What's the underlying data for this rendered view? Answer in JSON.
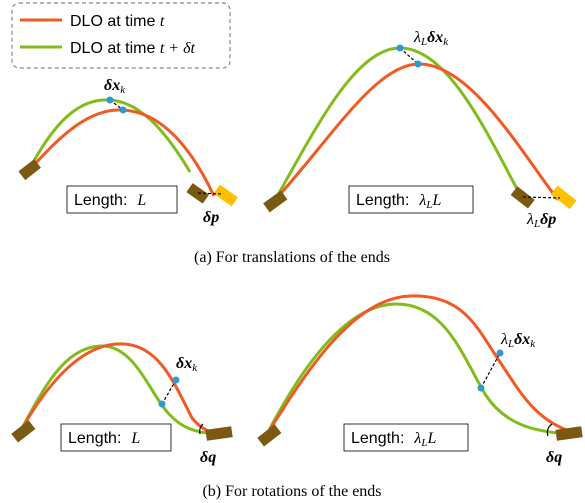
{
  "legend": {
    "items": [
      {
        "prefix": "DLO at time ",
        "math": "t",
        "suffix": "",
        "color": "#f05a24"
      },
      {
        "prefix": "DLO at time ",
        "math": "t",
        "suffix": " + δt",
        "color": "#82bc1c"
      }
    ]
  },
  "panel_a": {
    "caption": "(a) For translations of the ends",
    "left": {
      "length_prefix": "Length:",
      "length_var": "L",
      "disp_label": "δx",
      "disp_sub": "k",
      "end_label": "δp"
    },
    "right": {
      "length_prefix": "Length:",
      "length_var": "λ",
      "length_sub": "L",
      "length_tail": "L",
      "disp_label": "δx",
      "disp_sub": "k",
      "disp_scale": "λ",
      "disp_scale_sub": "L",
      "end_label": "δp",
      "end_scale": "λ",
      "end_scale_sub": "L"
    }
  },
  "panel_b": {
    "caption": "(b) For rotations of the ends",
    "left": {
      "length_prefix": "Length:",
      "length_var": "L",
      "disp_label": "δx",
      "disp_sub": "k",
      "end_label": "δq"
    },
    "right": {
      "length_prefix": "Length:",
      "length_var": "λ",
      "length_sub": "L",
      "length_tail": "L",
      "disp_label": "δx",
      "disp_sub": "k",
      "disp_scale": "λ",
      "disp_scale_sub": "L",
      "end_label": "δq"
    }
  },
  "colors": {
    "red_curve": "#f05a24",
    "green_curve": "#82bc1c",
    "gripper_dark": "#7a5a12",
    "gripper_yellow": "#ffc000",
    "point": "#2d9ad6",
    "legend_border": "#888888"
  }
}
